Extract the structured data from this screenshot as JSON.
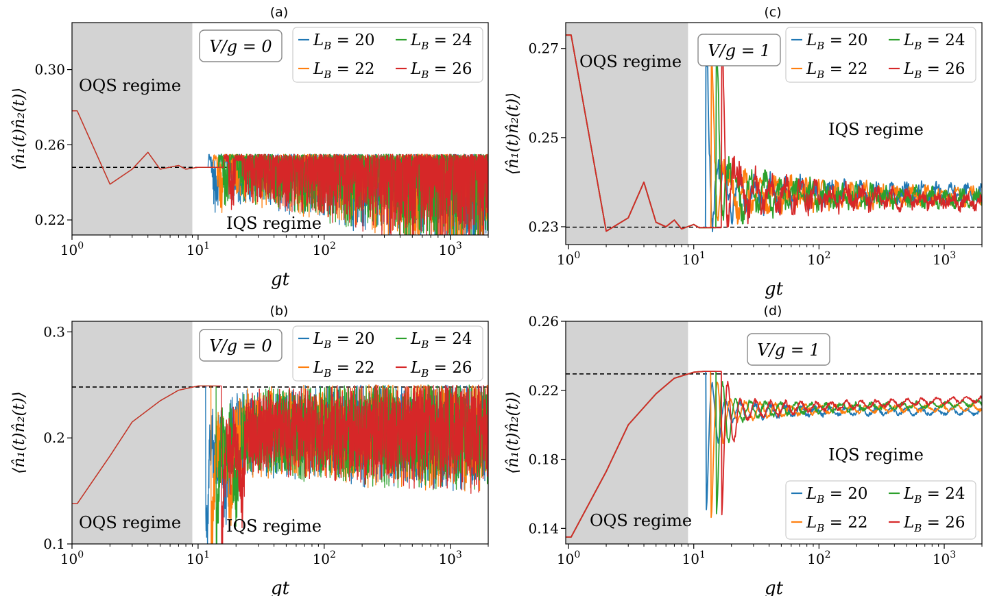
{
  "chart_data": [
    {
      "type": "line",
      "panel_label": "(a)",
      "xlabel": "gt",
      "ylabel": "⟨n̂₁(t)n̂₂(t)⟩",
      "xscale": "log",
      "xlim": [
        1,
        2000
      ],
      "ylim": [
        0.212,
        0.325
      ],
      "x_ticks": [
        {
          "v": 1,
          "base": "10",
          "exp": "0"
        },
        {
          "v": 10,
          "base": "10",
          "exp": "1"
        },
        {
          "v": 100,
          "base": "10",
          "exp": "2"
        },
        {
          "v": 1000,
          "base": "10",
          "exp": "3"
        }
      ],
      "y_ticks": [
        {
          "v": 0.22,
          "label": "0.22"
        },
        {
          "v": 0.26,
          "label": "0.26"
        },
        {
          "v": 0.3,
          "label": "0.30"
        }
      ],
      "shaded_region": {
        "x_from": 1,
        "x_to": 9,
        "label": "OQS regime"
      },
      "unshaded_label": "IQS regime",
      "reference_line": 0.248,
      "box_text": "V/g = 0",
      "legend": {
        "placement": "top-right",
        "columns": 2
      },
      "series": [
        {
          "name": "L_B = 20",
          "legend": {
            "base": "L",
            "sub": "B",
            "rest": " = 20"
          },
          "color": "#1f77b4"
        },
        {
          "name": "L_B = 22",
          "legend": {
            "base": "L",
            "sub": "B",
            "rest": " = 22"
          },
          "color": "#ff7f0e"
        },
        {
          "name": "L_B = 24",
          "legend": {
            "base": "L",
            "sub": "B",
            "rest": " = 24"
          },
          "color": "#2ca02c"
        },
        {
          "name": "L_B = 26",
          "legend": {
            "base": "L",
            "sub": "B",
            "rest": " = 26"
          },
          "color": "#d62728"
        }
      ],
      "early_points": [
        [
          1,
          0.278
        ],
        [
          1.1,
          0.278
        ],
        [
          2,
          0.239
        ],
        [
          3,
          0.247
        ],
        [
          4,
          0.256
        ],
        [
          5,
          0.247
        ],
        [
          7,
          0.249
        ],
        [
          8,
          0.247
        ],
        [
          10,
          0.248
        ],
        [
          11,
          0.248
        ]
      ],
      "dynamics": {
        "mode": "noisy",
        "base": 0.248,
        "arrival_t": 12,
        "arrival_shift": 1.1,
        "pulse": [
          [
            0,
            0.032
          ],
          [
            0.6,
            -0.01
          ],
          [
            1.2,
            0.025
          ]
        ],
        "amp_start": 0.012,
        "amp_end": 0.035,
        "saturation": 0.255
      }
    },
    {
      "type": "line",
      "panel_label": "(b)",
      "xlabel": "gt",
      "ylabel": "⟨n̂₁(t)n̂₂(t)⟩",
      "xscale": "log",
      "xlim": [
        1,
        2000
      ],
      "ylim": [
        0.1,
        0.31
      ],
      "x_ticks": [
        {
          "v": 1,
          "base": "10",
          "exp": "0"
        },
        {
          "v": 10,
          "base": "10",
          "exp": "1"
        },
        {
          "v": 100,
          "base": "10",
          "exp": "2"
        },
        {
          "v": 1000,
          "base": "10",
          "exp": "3"
        }
      ],
      "y_ticks": [
        {
          "v": 0.1,
          "label": "0.1"
        },
        {
          "v": 0.2,
          "label": "0.2"
        },
        {
          "v": 0.3,
          "label": "0.3"
        }
      ],
      "shaded_region": {
        "x_from": 1,
        "x_to": 9,
        "label": "OQS regime"
      },
      "unshaded_label": "IQS regime",
      "reference_line": 0.248,
      "box_text": "V/g = 0",
      "legend": {
        "placement": "top-right",
        "columns": 2
      },
      "series": [
        {
          "name": "L_B = 20",
          "legend": {
            "base": "L",
            "sub": "B",
            "rest": " = 20"
          },
          "color": "#1f77b4"
        },
        {
          "name": "L_B = 22",
          "legend": {
            "base": "L",
            "sub": "B",
            "rest": " = 22"
          },
          "color": "#ff7f0e"
        },
        {
          "name": "L_B = 24",
          "legend": {
            "base": "L",
            "sub": "B",
            "rest": " = 24"
          },
          "color": "#2ca02c"
        },
        {
          "name": "L_B = 26",
          "legend": {
            "base": "L",
            "sub": "B",
            "rest": " = 26"
          },
          "color": "#d62728"
        }
      ],
      "early_points": [
        [
          1,
          0.138
        ],
        [
          1.1,
          0.138
        ],
        [
          2,
          0.183
        ],
        [
          3,
          0.215
        ],
        [
          5,
          0.235
        ],
        [
          7,
          0.245
        ],
        [
          10,
          0.249
        ],
        [
          11,
          0.249
        ]
      ],
      "dynamics": {
        "mode": "noisy",
        "base": 0.205,
        "arrival_t": 11.5,
        "arrival_shift": 1.1,
        "pulse": [
          [
            0,
            -0.1
          ],
          [
            0.8,
            -0.02
          ],
          [
            1.6,
            -0.06
          ]
        ],
        "amp_start": 0.03,
        "amp_end": 0.045,
        "saturation": 0.25
      }
    },
    {
      "type": "line",
      "panel_label": "(c)",
      "xlabel": "gt",
      "ylabel": "⟨n̂₁(t)n̂₂(t)⟩",
      "xscale": "log",
      "xlim": [
        0.95,
        2000
      ],
      "ylim": [
        0.226,
        0.2758
      ],
      "x_ticks": [
        {
          "v": 1,
          "base": "10",
          "exp": "0"
        },
        {
          "v": 10,
          "base": "10",
          "exp": "1"
        },
        {
          "v": 100,
          "base": "10",
          "exp": "2"
        },
        {
          "v": 1000,
          "base": "10",
          "exp": "3"
        }
      ],
      "y_ticks": [
        {
          "v": 0.23,
          "label": "0.23"
        },
        {
          "v": 0.25,
          "label": "0.25"
        },
        {
          "v": 0.27,
          "label": "0.27"
        }
      ],
      "shaded_region": {
        "x_from": 0.95,
        "x_to": 9,
        "label": "OQS regime"
      },
      "unshaded_label": "IQS regime",
      "reference_line": 0.2299,
      "box_text": "V/g = 1",
      "legend": {
        "placement": "top-right",
        "columns": 2
      },
      "series": [
        {
          "name": "L_B = 20",
          "legend": {
            "base": "L",
            "sub": "B",
            "rest": " = 20"
          },
          "color": "#1f77b4",
          "final": 0.2375
        },
        {
          "name": "L_B = 22",
          "legend": {
            "base": "L",
            "sub": "B",
            "rest": " = 22"
          },
          "color": "#ff7f0e",
          "final": 0.2368
        },
        {
          "name": "L_B = 24",
          "legend": {
            "base": "L",
            "sub": "B",
            "rest": " = 24"
          },
          "color": "#2ca02c",
          "final": 0.2362
        },
        {
          "name": "L_B = 26",
          "legend": {
            "base": "L",
            "sub": "B",
            "rest": " = 26"
          },
          "color": "#d62728",
          "final": 0.2356
        }
      ],
      "early_points": [
        [
          0.95,
          0.273
        ],
        [
          1.05,
          0.273
        ],
        [
          2,
          0.229
        ],
        [
          3,
          0.232
        ],
        [
          4,
          0.24
        ],
        [
          5,
          0.231
        ],
        [
          6,
          0.23
        ],
        [
          7,
          0.2315
        ],
        [
          8,
          0.2295
        ],
        [
          10,
          0.2305
        ],
        [
          11,
          0.2298
        ]
      ],
      "dynamics": {
        "mode": "damped",
        "base": 0.2375,
        "arrival_t": 12.5,
        "arrival_shift": 1.1,
        "pulse": [
          [
            0,
            0.034
          ],
          [
            0.45,
            -0.012
          ],
          [
            0.9,
            0.012
          ]
        ],
        "amp_start": 0.005,
        "amp_end": 0.0012,
        "noise_start": 0.003,
        "noise_end": 0.0012
      }
    },
    {
      "type": "line",
      "panel_label": "(d)",
      "xlabel": "gt",
      "ylabel": "⟨n̂₁(t)n̂₂(t)⟩",
      "xscale": "log",
      "xlim": [
        0.95,
        2000
      ],
      "ylim": [
        0.131,
        0.26
      ],
      "x_ticks": [
        {
          "v": 1,
          "base": "10",
          "exp": "0"
        },
        {
          "v": 10,
          "base": "10",
          "exp": "1"
        },
        {
          "v": 100,
          "base": "10",
          "exp": "2"
        },
        {
          "v": 1000,
          "base": "10",
          "exp": "3"
        }
      ],
      "y_ticks": [
        {
          "v": 0.14,
          "label": "0.14"
        },
        {
          "v": 0.18,
          "label": "0.18"
        },
        {
          "v": 0.22,
          "label": "0.22"
        },
        {
          "v": 0.26,
          "label": "0.26"
        }
      ],
      "shaded_region": {
        "x_from": 0.95,
        "x_to": 9,
        "label": "OQS regime"
      },
      "unshaded_label": "IQS regime",
      "reference_line": 0.2295,
      "box_text": "V/g = 1",
      "legend": {
        "placement": "bottom-right",
        "columns": 2
      },
      "series": [
        {
          "name": "L_B = 20",
          "legend": {
            "base": "L",
            "sub": "B",
            "rest": " = 20"
          },
          "color": "#1f77b4",
          "final": 0.2075
        },
        {
          "name": "L_B = 22",
          "legend": {
            "base": "L",
            "sub": "B",
            "rest": " = 22"
          },
          "color": "#ff7f0e",
          "final": 0.21
        },
        {
          "name": "L_B = 24",
          "legend": {
            "base": "L",
            "sub": "B",
            "rest": " = 24"
          },
          "color": "#2ca02c",
          "final": 0.2125
        },
        {
          "name": "L_B = 26",
          "legend": {
            "base": "L",
            "sub": "B",
            "rest": " = 26"
          },
          "color": "#d62728",
          "final": 0.215
        }
      ],
      "early_points": [
        [
          0.95,
          0.135
        ],
        [
          1.05,
          0.135
        ],
        [
          2,
          0.173
        ],
        [
          3,
          0.2
        ],
        [
          5,
          0.218
        ],
        [
          7,
          0.227
        ],
        [
          10,
          0.2305
        ],
        [
          12,
          0.231
        ]
      ],
      "dynamics": {
        "mode": "damped",
        "base": 0.208,
        "arrival_t": 12.5,
        "arrival_shift": 1.1,
        "pulse": [
          [
            0,
            -0.062
          ],
          [
            0.5,
            0.015
          ],
          [
            1.0,
            -0.012
          ]
        ],
        "amp_start": 0.007,
        "amp_end": 0.0015,
        "noise_start": 0.0015,
        "noise_end": 0.0008
      }
    }
  ]
}
